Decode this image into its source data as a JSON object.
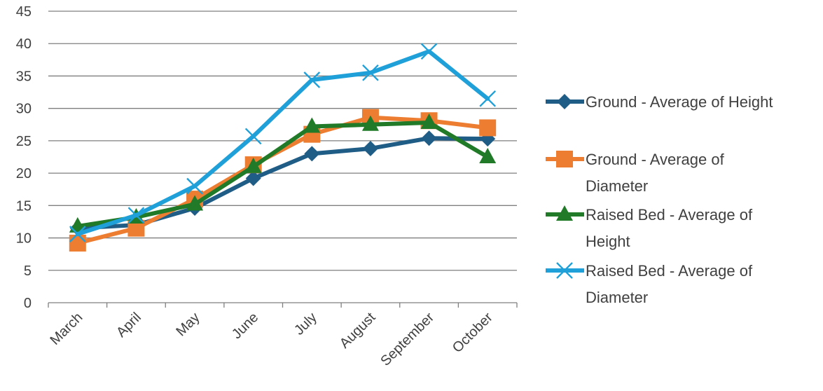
{
  "chart_data": {
    "type": "line",
    "categories": [
      "March",
      "April",
      "May",
      "June",
      "July",
      "August",
      "September",
      "October"
    ],
    "ylim": [
      0,
      45
    ],
    "yticks": [
      0,
      5,
      10,
      15,
      20,
      25,
      30,
      35,
      40,
      45
    ],
    "grid": true,
    "legend_position": "right",
    "series": [
      {
        "name": "Ground - Average of Height",
        "legend_lines": [
          "Ground - Average of Height"
        ],
        "color": "#1F5C86",
        "marker": "diamond",
        "values": [
          11.5,
          12.0,
          14.6,
          19.2,
          23.0,
          23.8,
          25.4,
          25.3
        ]
      },
      {
        "name": "Ground - Average of Diameter",
        "legend_lines": [
          "Ground - Average of",
          "Diameter"
        ],
        "color": "#ED7D31",
        "marker": "square",
        "values": [
          9.2,
          11.5,
          16.0,
          21.3,
          26.0,
          28.6,
          28.1,
          27.0
        ]
      },
      {
        "name": "Raised Bed - Average of Height",
        "legend_lines": [
          "Raised Bed - Average of",
          "Height"
        ],
        "color": "#217A28",
        "marker": "triangle",
        "values": [
          11.8,
          13.2,
          15.2,
          21.0,
          27.2,
          27.5,
          27.8,
          22.5
        ]
      },
      {
        "name": "Raised Bed - Average of Diameter",
        "legend_lines": [
          "Raised Bed - Average of",
          "Diameter"
        ],
        "color": "#1FA0D8",
        "marker": "x",
        "values": [
          10.6,
          13.5,
          18.0,
          25.7,
          34.4,
          35.5,
          38.8,
          31.5
        ]
      }
    ]
  }
}
